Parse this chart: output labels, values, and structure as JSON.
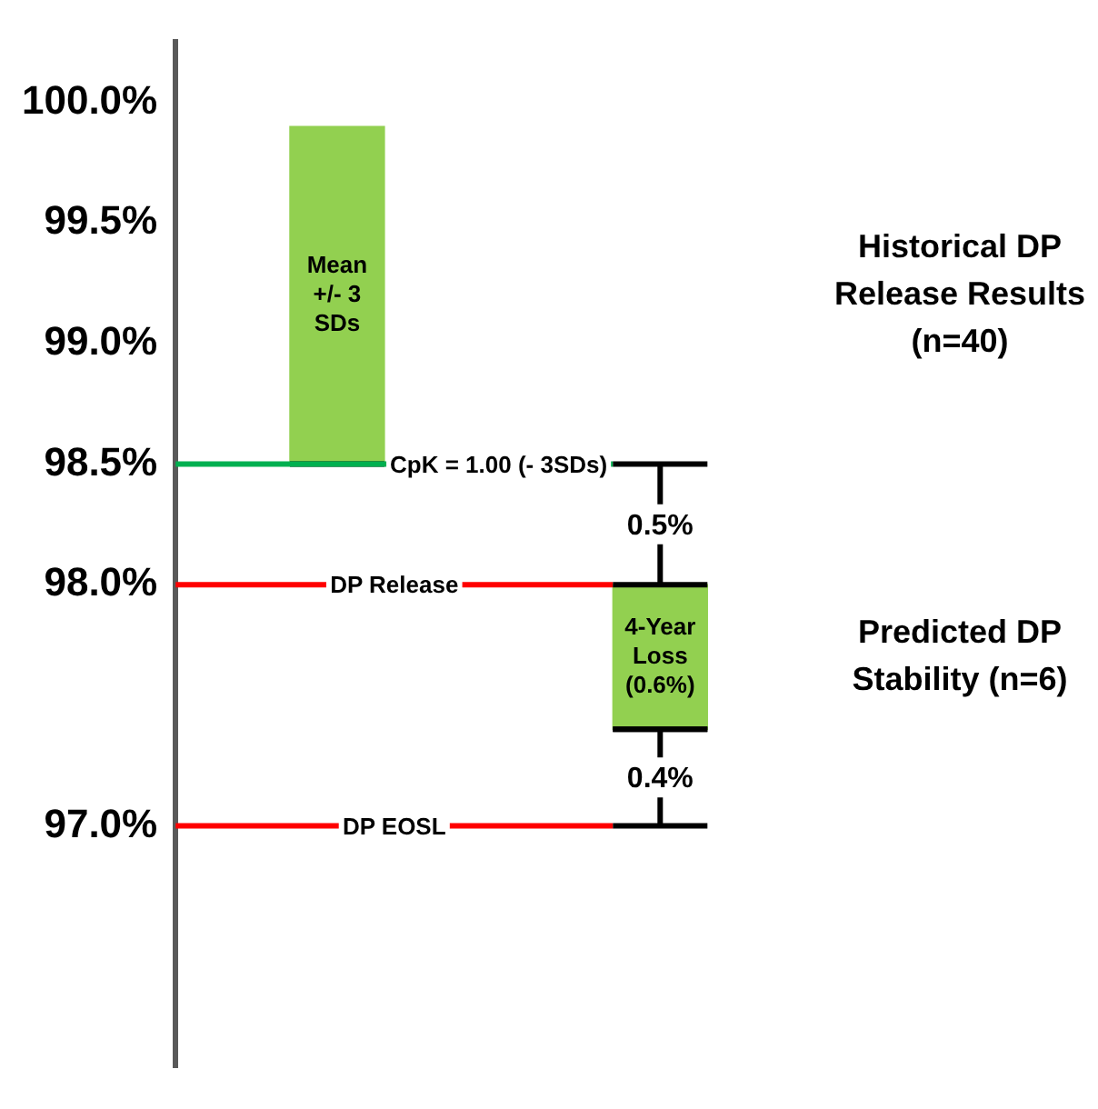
{
  "chart_data": {
    "type": "bar",
    "categories": [
      null,
      null
    ],
    "values": [
      1.4,
      0.6
    ],
    "base": [
      98.5,
      97.4
    ],
    "color": "#92d050",
    "ylim": [
      96,
      100.25
    ],
    "yticks": [
      {
        "value": 97,
        "label": "97.0%"
      },
      {
        "value": 98,
        "label": "98.0%"
      },
      {
        "value": 98.5,
        "label": "98.5%"
      },
      {
        "value": 99,
        "label": "99.0%"
      },
      {
        "value": 99.5,
        "label": "99.5%"
      },
      {
        "value": 100,
        "label": "100.0%"
      }
    ],
    "ref_lines": [
      {
        "axis": "y",
        "value": 98.5,
        "color": "#00b050"
      },
      {
        "axis": "y",
        "value": 98,
        "label": "DP Release",
        "color": "#ff0000"
      },
      {
        "axis": "y",
        "value": 97,
        "label": "DP EOSL",
        "color": "#ff0000"
      }
    ],
    "annotations": [
      "Mean +/- 3 SDs",
      "4-Year Loss (0.6%)",
      "Historical DP Release Results (n=40)",
      "Predicted DP Stability (n=6)",
      "0.5%",
      "0.4%",
      {
        "text": "CpK = 1.00 (- 3SDs)",
        "y": 98.5
      }
    ],
    "grid": false,
    "legend": false
  }
}
